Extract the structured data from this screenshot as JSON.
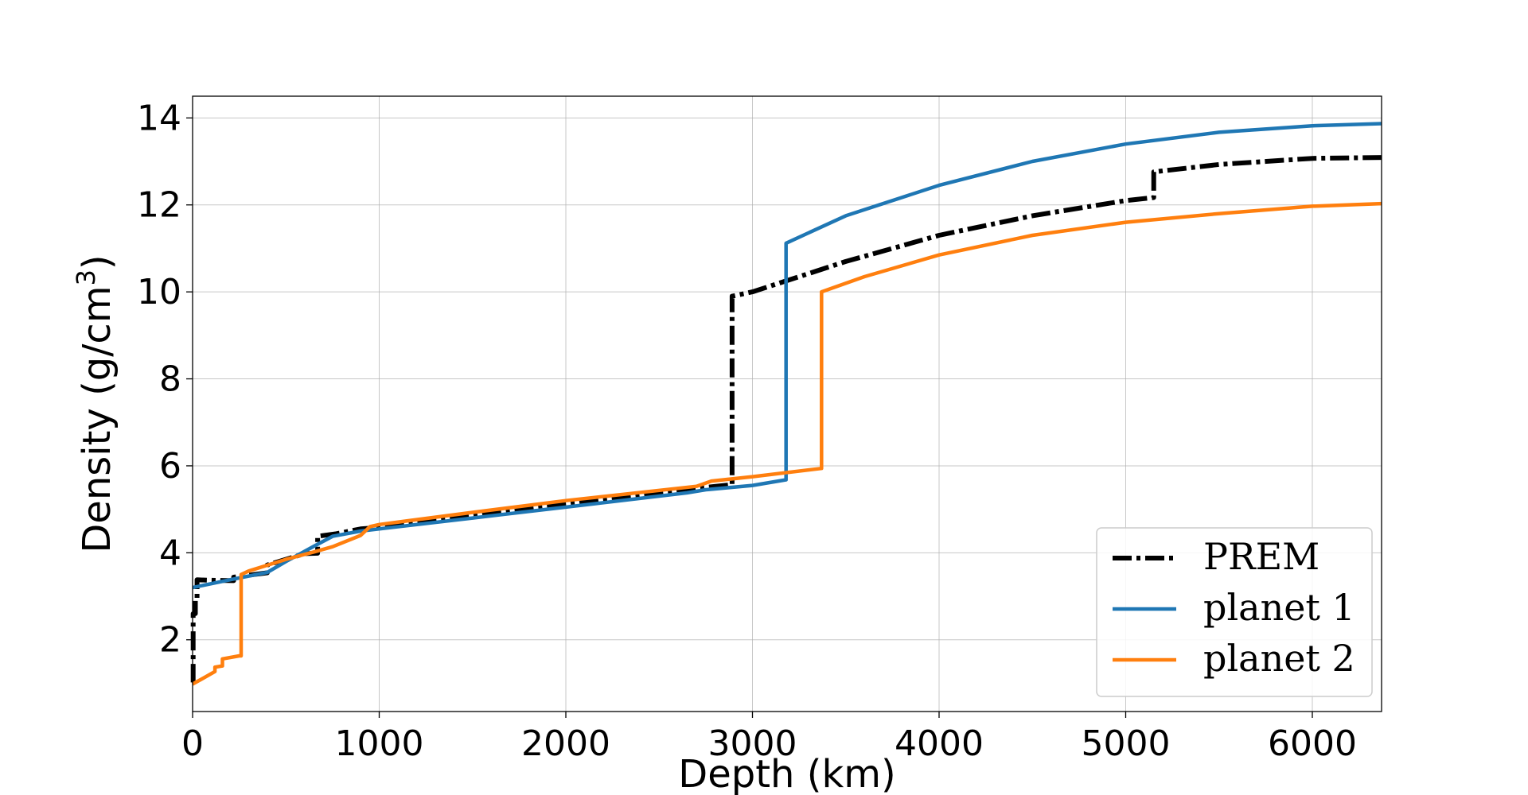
{
  "chart_data": {
    "type": "line",
    "xlabel": "Depth (km)",
    "ylabel": "Density (g/cm",
    "ylabel_superscript": "3",
    "ylabel_suffix": ")",
    "xlim": [
      0,
      6371
    ],
    "ylim": [
      0.35,
      14.5
    ],
    "xticks": [
      0,
      1000,
      2000,
      3000,
      4000,
      5000,
      6000
    ],
    "yticks": [
      2,
      4,
      6,
      8,
      10,
      12,
      14
    ],
    "grid": true,
    "legend_position": "lower-right",
    "series": [
      {
        "name": "PREM",
        "color": "#000000",
        "style": "dashdot",
        "points": [
          [
            0,
            1.02
          ],
          [
            3,
            1.02
          ],
          [
            3,
            2.6
          ],
          [
            15,
            2.6
          ],
          [
            15,
            2.9
          ],
          [
            24,
            2.9
          ],
          [
            24,
            3.38
          ],
          [
            80,
            3.37
          ],
          [
            220,
            3.36
          ],
          [
            220,
            3.44
          ],
          [
            400,
            3.54
          ],
          [
            400,
            3.72
          ],
          [
            600,
            3.98
          ],
          [
            670,
            3.99
          ],
          [
            670,
            4.38
          ],
          [
            771,
            4.44
          ],
          [
            900,
            4.55
          ],
          [
            1000,
            4.58
          ],
          [
            1500,
            4.87
          ],
          [
            2000,
            5.13
          ],
          [
            2500,
            5.39
          ],
          [
            2891,
            5.57
          ],
          [
            2891,
            9.9
          ],
          [
            3000,
            10.0
          ],
          [
            3500,
            10.7
          ],
          [
            4000,
            11.3
          ],
          [
            4500,
            11.75
          ],
          [
            5000,
            12.1
          ],
          [
            5150,
            12.17
          ],
          [
            5150,
            12.76
          ],
          [
            5500,
            12.93
          ],
          [
            6000,
            13.07
          ],
          [
            6371,
            13.09
          ]
        ]
      },
      {
        "name": "planet 1",
        "color": "#1f77b4",
        "style": "solid",
        "points": [
          [
            0,
            3.2
          ],
          [
            200,
            3.38
          ],
          [
            400,
            3.55
          ],
          [
            500,
            3.8
          ],
          [
            650,
            4.15
          ],
          [
            750,
            4.38
          ],
          [
            900,
            4.5
          ],
          [
            1000,
            4.55
          ],
          [
            1500,
            4.8
          ],
          [
            2000,
            5.05
          ],
          [
            2650,
            5.38
          ],
          [
            2750,
            5.45
          ],
          [
            3000,
            5.55
          ],
          [
            3180,
            5.68
          ],
          [
            3180,
            11.12
          ],
          [
            3500,
            11.75
          ],
          [
            4000,
            12.45
          ],
          [
            4500,
            13.0
          ],
          [
            5000,
            13.4
          ],
          [
            5500,
            13.67
          ],
          [
            6000,
            13.82
          ],
          [
            6371,
            13.87
          ]
        ]
      },
      {
        "name": "planet 2",
        "color": "#ff7f0e",
        "style": "solid",
        "points": [
          [
            0,
            0.98
          ],
          [
            50,
            1.1
          ],
          [
            120,
            1.27
          ],
          [
            120,
            1.37
          ],
          [
            160,
            1.4
          ],
          [
            160,
            1.56
          ],
          [
            250,
            1.63
          ],
          [
            260,
            1.63
          ],
          [
            260,
            3.5
          ],
          [
            300,
            3.58
          ],
          [
            500,
            3.85
          ],
          [
            650,
            4.02
          ],
          [
            750,
            4.14
          ],
          [
            900,
            4.4
          ],
          [
            950,
            4.6
          ],
          [
            1000,
            4.65
          ],
          [
            1500,
            4.93
          ],
          [
            2000,
            5.2
          ],
          [
            2700,
            5.53
          ],
          [
            2780,
            5.65
          ],
          [
            3000,
            5.75
          ],
          [
            3370,
            5.94
          ],
          [
            3370,
            10.0
          ],
          [
            3600,
            10.35
          ],
          [
            4000,
            10.85
          ],
          [
            4500,
            11.3
          ],
          [
            5000,
            11.6
          ],
          [
            5500,
            11.8
          ],
          [
            6000,
            11.97
          ],
          [
            6371,
            12.03
          ]
        ]
      }
    ]
  }
}
